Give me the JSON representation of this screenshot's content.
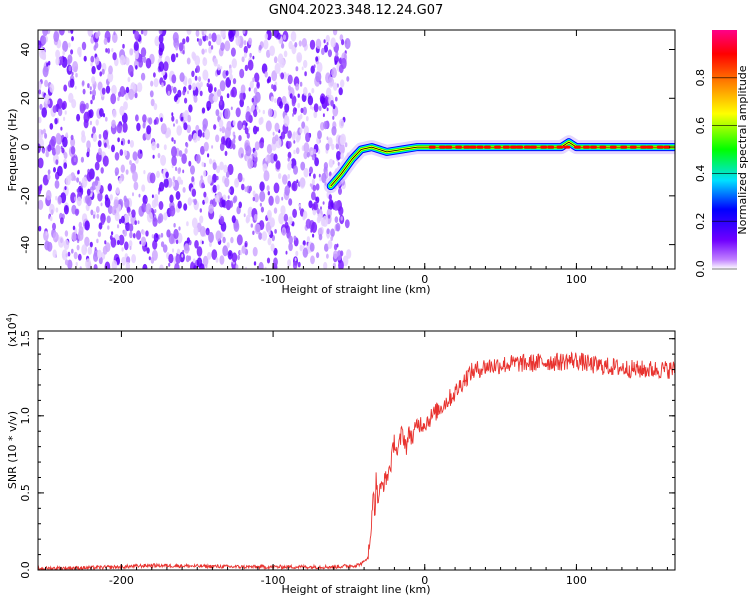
{
  "title": "GN04.2023.348.12.24.G07",
  "chart_data": [
    {
      "type": "heatmap",
      "xlabel": "Height of straight line (km)",
      "ylabel": "Frequency (Hz)",
      "xlim": [
        -255,
        165
      ],
      "ylim": [
        -50,
        48
      ],
      "x_ticks": [
        -200,
        -100,
        0,
        100
      ],
      "x_tick_labels": [
        "-200",
        "-100",
        "0",
        "100"
      ],
      "y_ticks": [
        -40,
        -20,
        0,
        20,
        40
      ],
      "y_tick_labels": [
        "-40",
        "-20",
        "0",
        "20",
        "40"
      ],
      "noise_region_x": [
        -255,
        -50
      ],
      "signal_trace": {
        "x": [
          -62,
          -55,
          -48,
          -42,
          -35,
          -25,
          -15,
          -5,
          0,
          20,
          40,
          60,
          80,
          90,
          95,
          100,
          120,
          140,
          165
        ],
        "y": [
          -16,
          -11,
          -5,
          -1,
          0,
          -2,
          -1,
          0,
          0,
          0,
          0,
          0,
          0,
          0,
          2,
          0,
          0,
          0,
          0
        ]
      },
      "colorbar": {
        "label": "Normalized spectral amplitude",
        "range": [
          0,
          1
        ],
        "ticks": [
          0.0,
          0.2,
          0.4,
          0.6,
          0.8
        ],
        "tick_labels": [
          "0.0",
          "0.2",
          "0.4",
          "0.6",
          "0.8"
        ],
        "colors": [
          "#ffffff",
          "#7000ff",
          "#0000ff",
          "#00e0ff",
          "#00ff00",
          "#ffff00",
          "#ff8000",
          "#ff0000",
          "#ff0088"
        ]
      },
      "grid": false
    },
    {
      "type": "line",
      "xlabel": "Height of straight line (km)",
      "ylabel": "SNR (10 * v/v)",
      "y_scale_label": "(x10",
      "y_scale_exp": "4",
      "y_scale_close": ")",
      "xlim": [
        -255,
        165
      ],
      "ylim": [
        0,
        1.55
      ],
      "x_ticks": [
        -200,
        -100,
        0,
        100
      ],
      "x_tick_labels": [
        "-200",
        "-100",
        "0",
        "100"
      ],
      "y_ticks": [
        0.0,
        0.5,
        1.0,
        1.5
      ],
      "y_tick_labels": [
        "0.0",
        "0.5",
        "1.0",
        "1.5"
      ],
      "series": [
        {
          "color": "#e8332f",
          "x": [
            -255,
            -220,
            -200,
            -180,
            -150,
            -120,
            -100,
            -80,
            -60,
            -45,
            -40,
            -38,
            -36,
            -34,
            -33,
            -32,
            -31,
            -30,
            -28,
            -25,
            -22,
            -20,
            -18,
            -15,
            -12,
            -10,
            -8,
            -5,
            0,
            5,
            10,
            15,
            20,
            25,
            30,
            35,
            40,
            50,
            60,
            70,
            80,
            90,
            95,
            100,
            110,
            120,
            130,
            140,
            150,
            165
          ],
          "y": [
            0.01,
            0.015,
            0.02,
            0.03,
            0.025,
            0.02,
            0.02,
            0.02,
            0.02,
            0.03,
            0.05,
            0.08,
            0.15,
            0.55,
            0.35,
            0.6,
            0.45,
            0.5,
            0.55,
            0.6,
            0.7,
            0.85,
            0.75,
            0.9,
            0.8,
            0.9,
            0.85,
            0.95,
            0.95,
            1.0,
            1.05,
            1.1,
            1.15,
            1.22,
            1.28,
            1.3,
            1.32,
            1.33,
            1.34,
            1.34,
            1.35,
            1.35,
            1.36,
            1.36,
            1.33,
            1.32,
            1.31,
            1.3,
            1.3,
            1.3
          ]
        }
      ],
      "grid": false
    }
  ]
}
